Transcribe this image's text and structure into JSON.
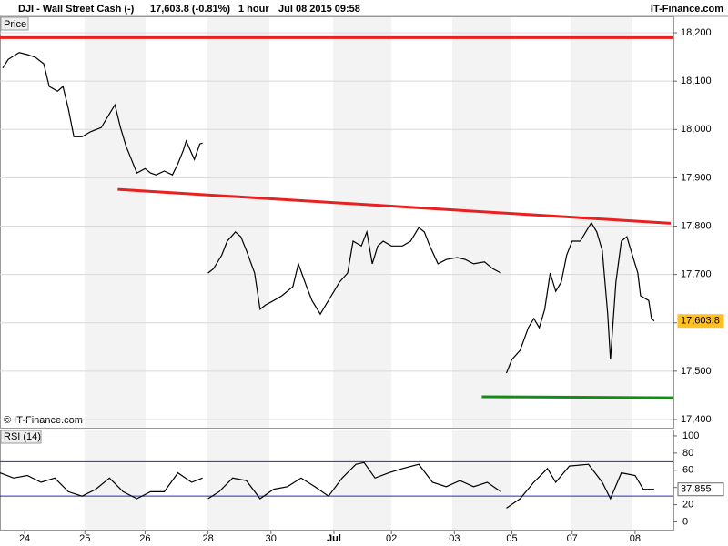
{
  "header": {
    "symbol": "DJI - Wall Street Cash (-)",
    "quote": "17,603.8 (-0.81%)",
    "interval": "1 hour",
    "timestamp": "Jul 08 2015 09:58",
    "brand": "IT-Finance.com"
  },
  "chart_data": [
    {
      "type": "line",
      "label": "Price",
      "watermark": "© IT-Finance.com",
      "color": "#000000",
      "x": [
        1,
        3,
        7,
        10,
        13,
        16,
        18,
        21,
        23,
        25,
        27,
        30,
        33,
        37,
        39,
        42,
        44,
        46,
        48,
        50,
        53,
        55,
        57,
        60,
        63,
        65,
        67,
        68,
        71,
        73,
        74,
        75,
        76,
        78,
        81,
        83,
        86,
        88,
        90,
        93,
        95,
        97,
        100,
        103,
        107,
        109,
        112,
        114,
        117,
        119,
        122,
        124,
        127,
        129,
        132,
        134,
        136,
        138,
        140,
        143,
        147,
        150,
        153,
        155,
        157,
        160,
        163,
        167,
        170,
        173,
        177,
        180,
        183,
        184,
        185,
        187,
        190,
        193,
        195,
        197,
        199,
        201,
        203,
        205,
        207,
        209,
        212,
        214,
        216,
        218,
        220,
        222,
        223,
        225,
        227,
        229,
        231,
        233,
        234,
        237,
        238,
        239
      ],
      "values": [
        18127,
        18145,
        18159,
        18155,
        18149,
        18136,
        18089,
        18079,
        18089,
        18042,
        17985,
        17985,
        17995,
        18004,
        18023,
        18051,
        18004,
        17966,
        17938,
        17910,
        17919,
        17910,
        17906,
        17914,
        17906,
        17929,
        17957,
        17976,
        17938,
        17970,
        17972,
        null,
        17703,
        17712,
        17740,
        17769,
        17788,
        17778,
        17750,
        17703,
        17628,
        17637,
        17646,
        17656,
        17675,
        17722,
        17675,
        17646,
        17618,
        17637,
        17665,
        17684,
        17703,
        17769,
        17759,
        17788,
        17722,
        17759,
        17769,
        17759,
        17759,
        17769,
        17797,
        17788,
        17759,
        17722,
        17731,
        17735,
        17731,
        17722,
        17726,
        17712,
        17703,
        null,
        17496,
        17524,
        17543,
        17590,
        17609,
        17590,
        17628,
        17703,
        17665,
        17684,
        17740,
        17769,
        17769,
        17788,
        17807,
        17788,
        17750,
        17618,
        17524,
        17684,
        17769,
        17778,
        17740,
        17703,
        17656,
        17646,
        17609,
        17603.8
      ],
      "xlim": [
        0,
        246
      ],
      "ylim": [
        17383,
        18234
      ],
      "yticks": [
        {
          "value": 17400,
          "label": "17,400"
        },
        {
          "value": 17500,
          "label": "17,500"
        },
        {
          "value": 17600,
          "label": "17,600"
        },
        {
          "value": 17700,
          "label": "17,700"
        },
        {
          "value": 17800,
          "label": "17,800"
        },
        {
          "value": 17900,
          "label": "17,900"
        },
        {
          "value": 18000,
          "label": "18,000"
        },
        {
          "value": 18100,
          "label": "18,100"
        },
        {
          "value": 18200,
          "label": "18,200"
        }
      ],
      "grid": true,
      "last_value": {
        "value": 17603.8,
        "label": "17,603.8"
      },
      "annotations": [
        {
          "x": [
            0,
            246
          ],
          "y": [
            18190,
            18190
          ],
          "color": "#e82020"
        },
        {
          "x": [
            43,
            245
          ],
          "y": [
            17876,
            17806
          ],
          "color": "#e82020"
        },
        {
          "x": [
            176,
            246
          ],
          "y": [
            17447,
            17445
          ],
          "color": "#109010"
        }
      ]
    },
    {
      "type": "line",
      "label": "RSI (14)",
      "color": "#000000",
      "x": [
        0,
        5,
        10,
        15,
        20,
        25,
        30,
        35,
        40,
        45,
        50,
        55,
        60,
        65,
        70,
        74,
        75,
        76,
        80,
        85,
        90,
        95,
        100,
        105,
        110,
        115,
        120,
        125,
        130,
        133,
        137,
        142,
        147,
        153,
        158,
        163,
        168,
        173,
        178,
        183,
        184,
        185,
        190,
        195,
        200,
        203,
        208,
        215,
        220,
        223,
        227,
        232,
        235,
        239
      ],
      "values": [
        57,
        51,
        54,
        46,
        51,
        35,
        30,
        38,
        51,
        35,
        27,
        35,
        35,
        57,
        46,
        51,
        null,
        27,
        35,
        51,
        48,
        27,
        38,
        41,
        51,
        41,
        30,
        51,
        67,
        69,
        51,
        57,
        62,
        67,
        46,
        41,
        48,
        41,
        46,
        35,
        null,
        16,
        27,
        46,
        62,
        46,
        65,
        67,
        46,
        27,
        57,
        54,
        38,
        37.855
      ],
      "xlim": [
        0,
        246
      ],
      "ylim": [
        -10,
        101
      ],
      "yticks": [
        0,
        20,
        40,
        60,
        80,
        100
      ],
      "levels": [
        30,
        70
      ],
      "level_color": "#2828b0",
      "last_value": 37.855,
      "xticks": [
        {
          "value": 9,
          "label": "24"
        },
        {
          "value": 31,
          "label": "25"
        },
        {
          "value": 53,
          "label": "26"
        },
        {
          "value": 76,
          "label": "28"
        },
        {
          "value": 99,
          "label": "30"
        },
        {
          "value": 122,
          "label": "Jul"
        },
        {
          "value": 143,
          "label": "02"
        },
        {
          "value": 166,
          "label": "03"
        },
        {
          "value": 187,
          "label": "05"
        },
        {
          "value": 209,
          "label": "07"
        },
        {
          "value": 232,
          "label": "08"
        }
      ]
    }
  ]
}
